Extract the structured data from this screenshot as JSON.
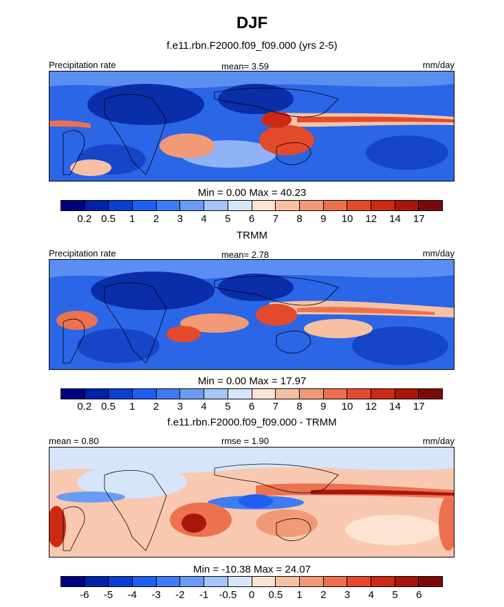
{
  "figure": {
    "title": "DJF",
    "units": "mm/day",
    "field_label": "Precipitation rate"
  },
  "panels": [
    {
      "id": "model",
      "title": "f.e11.rbn.F2000.f09_f09.000 (yrs 2-5)",
      "left_label": "Precipitation rate",
      "center_label": "mean=   3.59",
      "right_label": "mm/day",
      "minmax": "Min =   0.00 Max =  40.23",
      "colorbar": {
        "colors": [
          "#000080",
          "#0022aa",
          "#0a3fd0",
          "#1f5ff0",
          "#3e7cf5",
          "#6b9cf5",
          "#a6c4f7",
          "#d7e5fa",
          "#fde3d2",
          "#f8c0a3",
          "#f29a78",
          "#ec714f",
          "#e34a2c",
          "#cc2a14",
          "#a8160c",
          "#7a0a0a"
        ],
        "labels": [
          "0.2",
          "0.5",
          "1",
          "2",
          "3",
          "4",
          "5",
          "6",
          "7",
          "8",
          "9",
          "10",
          "12",
          "14",
          "17"
        ]
      }
    },
    {
      "id": "obs",
      "title": "TRMM",
      "left_label": "Precipitation rate",
      "center_label": "mean=   2.78",
      "right_label": "mm/day",
      "minmax": "Min =   0.00 Max =  17.97",
      "colorbar": {
        "colors": [
          "#000080",
          "#0022aa",
          "#0a3fd0",
          "#1f5ff0",
          "#3e7cf5",
          "#6b9cf5",
          "#a6c4f7",
          "#d7e5fa",
          "#fde3d2",
          "#f8c0a3",
          "#f29a78",
          "#ec714f",
          "#e34a2c",
          "#cc2a14",
          "#a8160c",
          "#7a0a0a"
        ],
        "labels": [
          "0.2",
          "0.5",
          "1",
          "2",
          "3",
          "4",
          "5",
          "6",
          "7",
          "8",
          "9",
          "10",
          "12",
          "14",
          "17"
        ]
      }
    },
    {
      "id": "diff",
      "title": "f.e11.rbn.F2000.f09_f09.000 - TRMM",
      "left_label": "mean =   0.80",
      "center_label": "rmse =   1.90",
      "right_label": "mm/day",
      "minmax": "Min = -10.38 Max =  24.07",
      "colorbar": {
        "colors": [
          "#000080",
          "#0022aa",
          "#0a3fd0",
          "#1f5ff0",
          "#3e7cf5",
          "#6b9cf5",
          "#a6c4f7",
          "#d7e5fa",
          "#fde3d2",
          "#f8c0a3",
          "#f29a78",
          "#ec714f",
          "#e34a2c",
          "#cc2a14",
          "#a8160c",
          "#7a0a0a"
        ],
        "labels": [
          "-6",
          "-5",
          "-4",
          "-3",
          "-2",
          "-1",
          "-0.5",
          "0",
          "0.5",
          "1",
          "2",
          "3",
          "4",
          "5",
          "6"
        ]
      }
    }
  ],
  "chart_data": [
    {
      "type": "heatmap",
      "title": "f.e11.rbn.F2000.f09_f09.000 (yrs 2-5)",
      "field": "Precipitation rate",
      "units": "mm/day",
      "mean": 3.59,
      "min": 0.0,
      "max": 40.23,
      "levels": [
        0.2,
        0.5,
        1,
        2,
        3,
        4,
        5,
        6,
        7,
        8,
        9,
        10,
        12,
        14,
        17
      ]
    },
    {
      "type": "heatmap",
      "title": "TRMM",
      "field": "Precipitation rate",
      "units": "mm/day",
      "mean": 2.78,
      "min": 0.0,
      "max": 17.97,
      "levels": [
        0.2,
        0.5,
        1,
        2,
        3,
        4,
        5,
        6,
        7,
        8,
        9,
        10,
        12,
        14,
        17
      ]
    },
    {
      "type": "heatmap",
      "title": "f.e11.rbn.F2000.f09_f09.000 - TRMM",
      "units": "mm/day",
      "mean": 0.8,
      "rmse": 1.9,
      "min": -10.38,
      "max": 24.07,
      "levels": [
        -6,
        -5,
        -4,
        -3,
        -2,
        -1,
        -0.5,
        0,
        0.5,
        1,
        2,
        3,
        4,
        5,
        6
      ]
    }
  ]
}
